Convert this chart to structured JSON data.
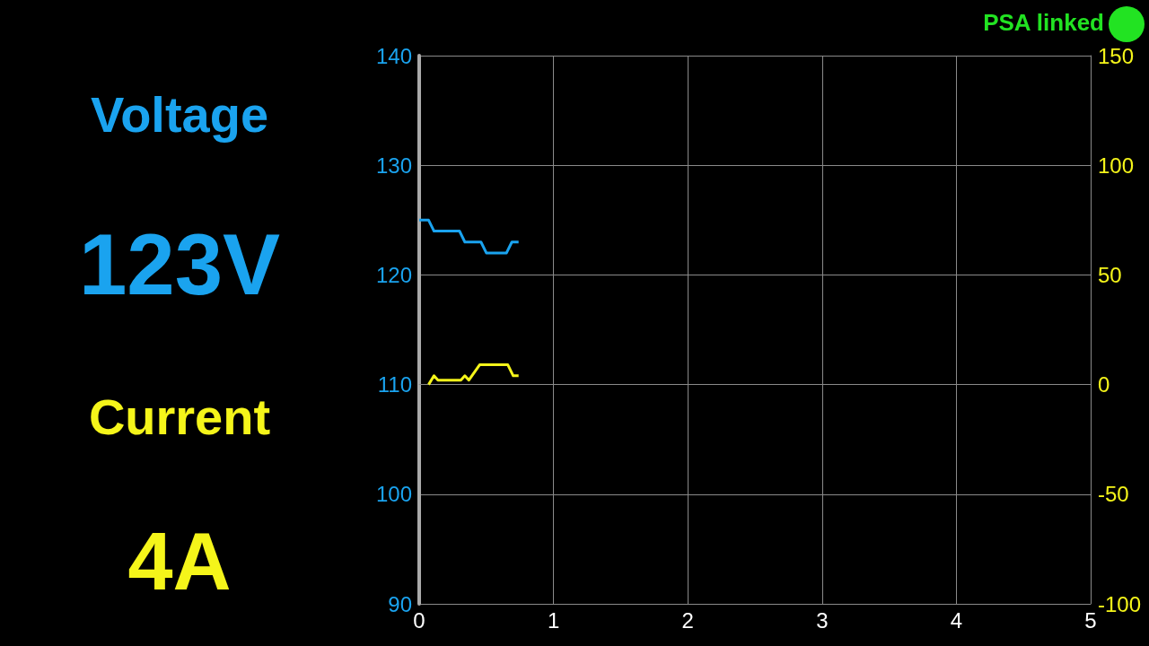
{
  "chart_data": {
    "type": "line",
    "series": [
      {
        "name": "Voltage",
        "color": "#1aa3ef",
        "x": [
          0,
          0.07,
          0.11,
          0.3,
          0.34,
          0.46,
          0.5,
          0.65,
          0.69,
          0.74
        ],
        "values": [
          125,
          125,
          124,
          124,
          123,
          123,
          122,
          122,
          123,
          123
        ]
      },
      {
        "name": "Current",
        "color": "#f5f51a",
        "axis": "y2",
        "x": [
          0.07,
          0.11,
          0.14,
          0.31,
          0.34,
          0.37,
          0.45,
          0.66,
          0.7,
          0.74
        ],
        "values": [
          0,
          4,
          2,
          2,
          4,
          2,
          9,
          9,
          4,
          4
        ]
      }
    ],
    "xlim": [
      0,
      5
    ],
    "xticks": [
      0,
      1,
      2,
      3,
      4,
      5
    ],
    "ylim": [
      90,
      140
    ],
    "yticks": [
      90,
      100,
      110,
      120,
      130,
      140
    ],
    "y2lim": [
      -100,
      150
    ],
    "y2ticks": [
      -100,
      -50,
      0,
      50,
      100,
      150
    ],
    "grid": true,
    "legend": false,
    "marker": "none",
    "line_style": "solid",
    "annotations": [
      "123V",
      "4A",
      "PSA linked"
    ]
  }
}
